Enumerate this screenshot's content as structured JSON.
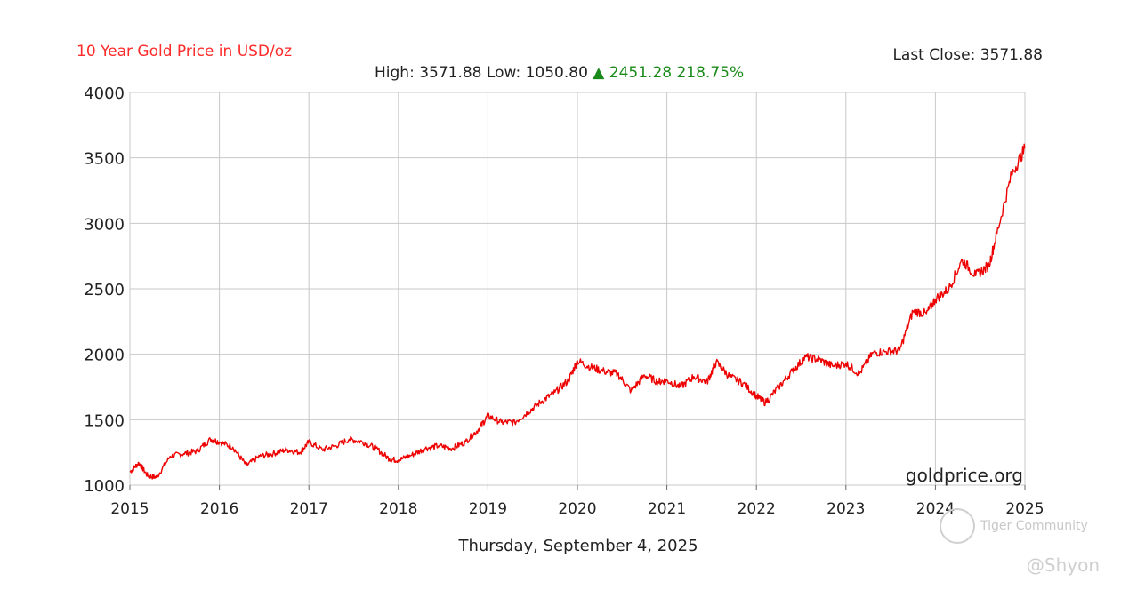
{
  "header": {
    "title": "10 Year Gold Price in USD/oz",
    "last_close": "Last Close: 3571.88",
    "high_low": "High: 3571.88 Low: 1050.80",
    "change": "▲ 2451.28 218.75%"
  },
  "footer": {
    "date": "Thursday, September 4, 2025"
  },
  "watermark": {
    "brand": "Tiger Community",
    "handle": "@Shyon"
  },
  "colors": {
    "line": "#ee0000",
    "title": "#ff2a2a",
    "up": "#1a8a1a",
    "grid": "#c8c8c8"
  },
  "chart_data": {
    "type": "line",
    "title": "10 Year Gold Price in USD/oz",
    "credit": "goldprice.org",
    "xlabel": "",
    "ylabel": "",
    "xlim": [
      2015,
      2025
    ],
    "ylim": [
      1000,
      4000
    ],
    "xticks": [
      "2015",
      "2016",
      "2017",
      "2018",
      "2019",
      "2020",
      "2021",
      "2022",
      "2023",
      "2024",
      "2025"
    ],
    "yticks": [
      "1000",
      "1500",
      "2000",
      "2500",
      "3000",
      "3500",
      "4000"
    ],
    "grid": true,
    "series": [
      {
        "name": "",
        "color": "#ee0000",
        "x": [
          2015.0,
          2015.1,
          2015.2,
          2015.3,
          2015.45,
          2015.6,
          2015.75,
          2015.9,
          2016.0,
          2016.15,
          2016.3,
          2016.45,
          2016.6,
          2016.75,
          2016.9,
          2017.0,
          2017.15,
          2017.3,
          2017.45,
          2017.6,
          2017.75,
          2017.9,
          2018.0,
          2018.15,
          2018.3,
          2018.45,
          2018.6,
          2018.75,
          2018.9,
          2019.0,
          2019.15,
          2019.3,
          2019.45,
          2019.6,
          2019.75,
          2019.9,
          2020.0,
          2020.15,
          2020.3,
          2020.45,
          2020.6,
          2020.75,
          2020.9,
          2021.0,
          2021.15,
          2021.3,
          2021.45,
          2021.55,
          2021.7,
          2021.85,
          2022.0,
          2022.1,
          2022.25,
          2022.4,
          2022.55,
          2022.7,
          2022.85,
          2023.0,
          2023.15,
          2023.3,
          2023.45,
          2023.6,
          2023.75,
          2023.9,
          2024.0,
          2024.15,
          2024.3,
          2024.45,
          2024.6,
          2024.7,
          2024.85,
          2025.0
        ],
        "y": [
          1100,
          1170,
          1070,
          1060,
          1220,
          1240,
          1260,
          1350,
          1330,
          1290,
          1150,
          1220,
          1240,
          1270,
          1250,
          1330,
          1270,
          1300,
          1350,
          1330,
          1280,
          1200,
          1190,
          1230,
          1280,
          1300,
          1280,
          1330,
          1430,
          1530,
          1480,
          1480,
          1560,
          1640,
          1710,
          1800,
          1950,
          1900,
          1870,
          1850,
          1720,
          1840,
          1790,
          1800,
          1750,
          1830,
          1790,
          1940,
          1830,
          1780,
          1680,
          1630,
          1750,
          1870,
          1980,
          1960,
          1910,
          1930,
          1850,
          2010,
          2020,
          2030,
          2330,
          2310,
          2420,
          2500,
          2720,
          2600,
          2680,
          2960,
          3370,
          3571.88
        ]
      }
    ]
  }
}
